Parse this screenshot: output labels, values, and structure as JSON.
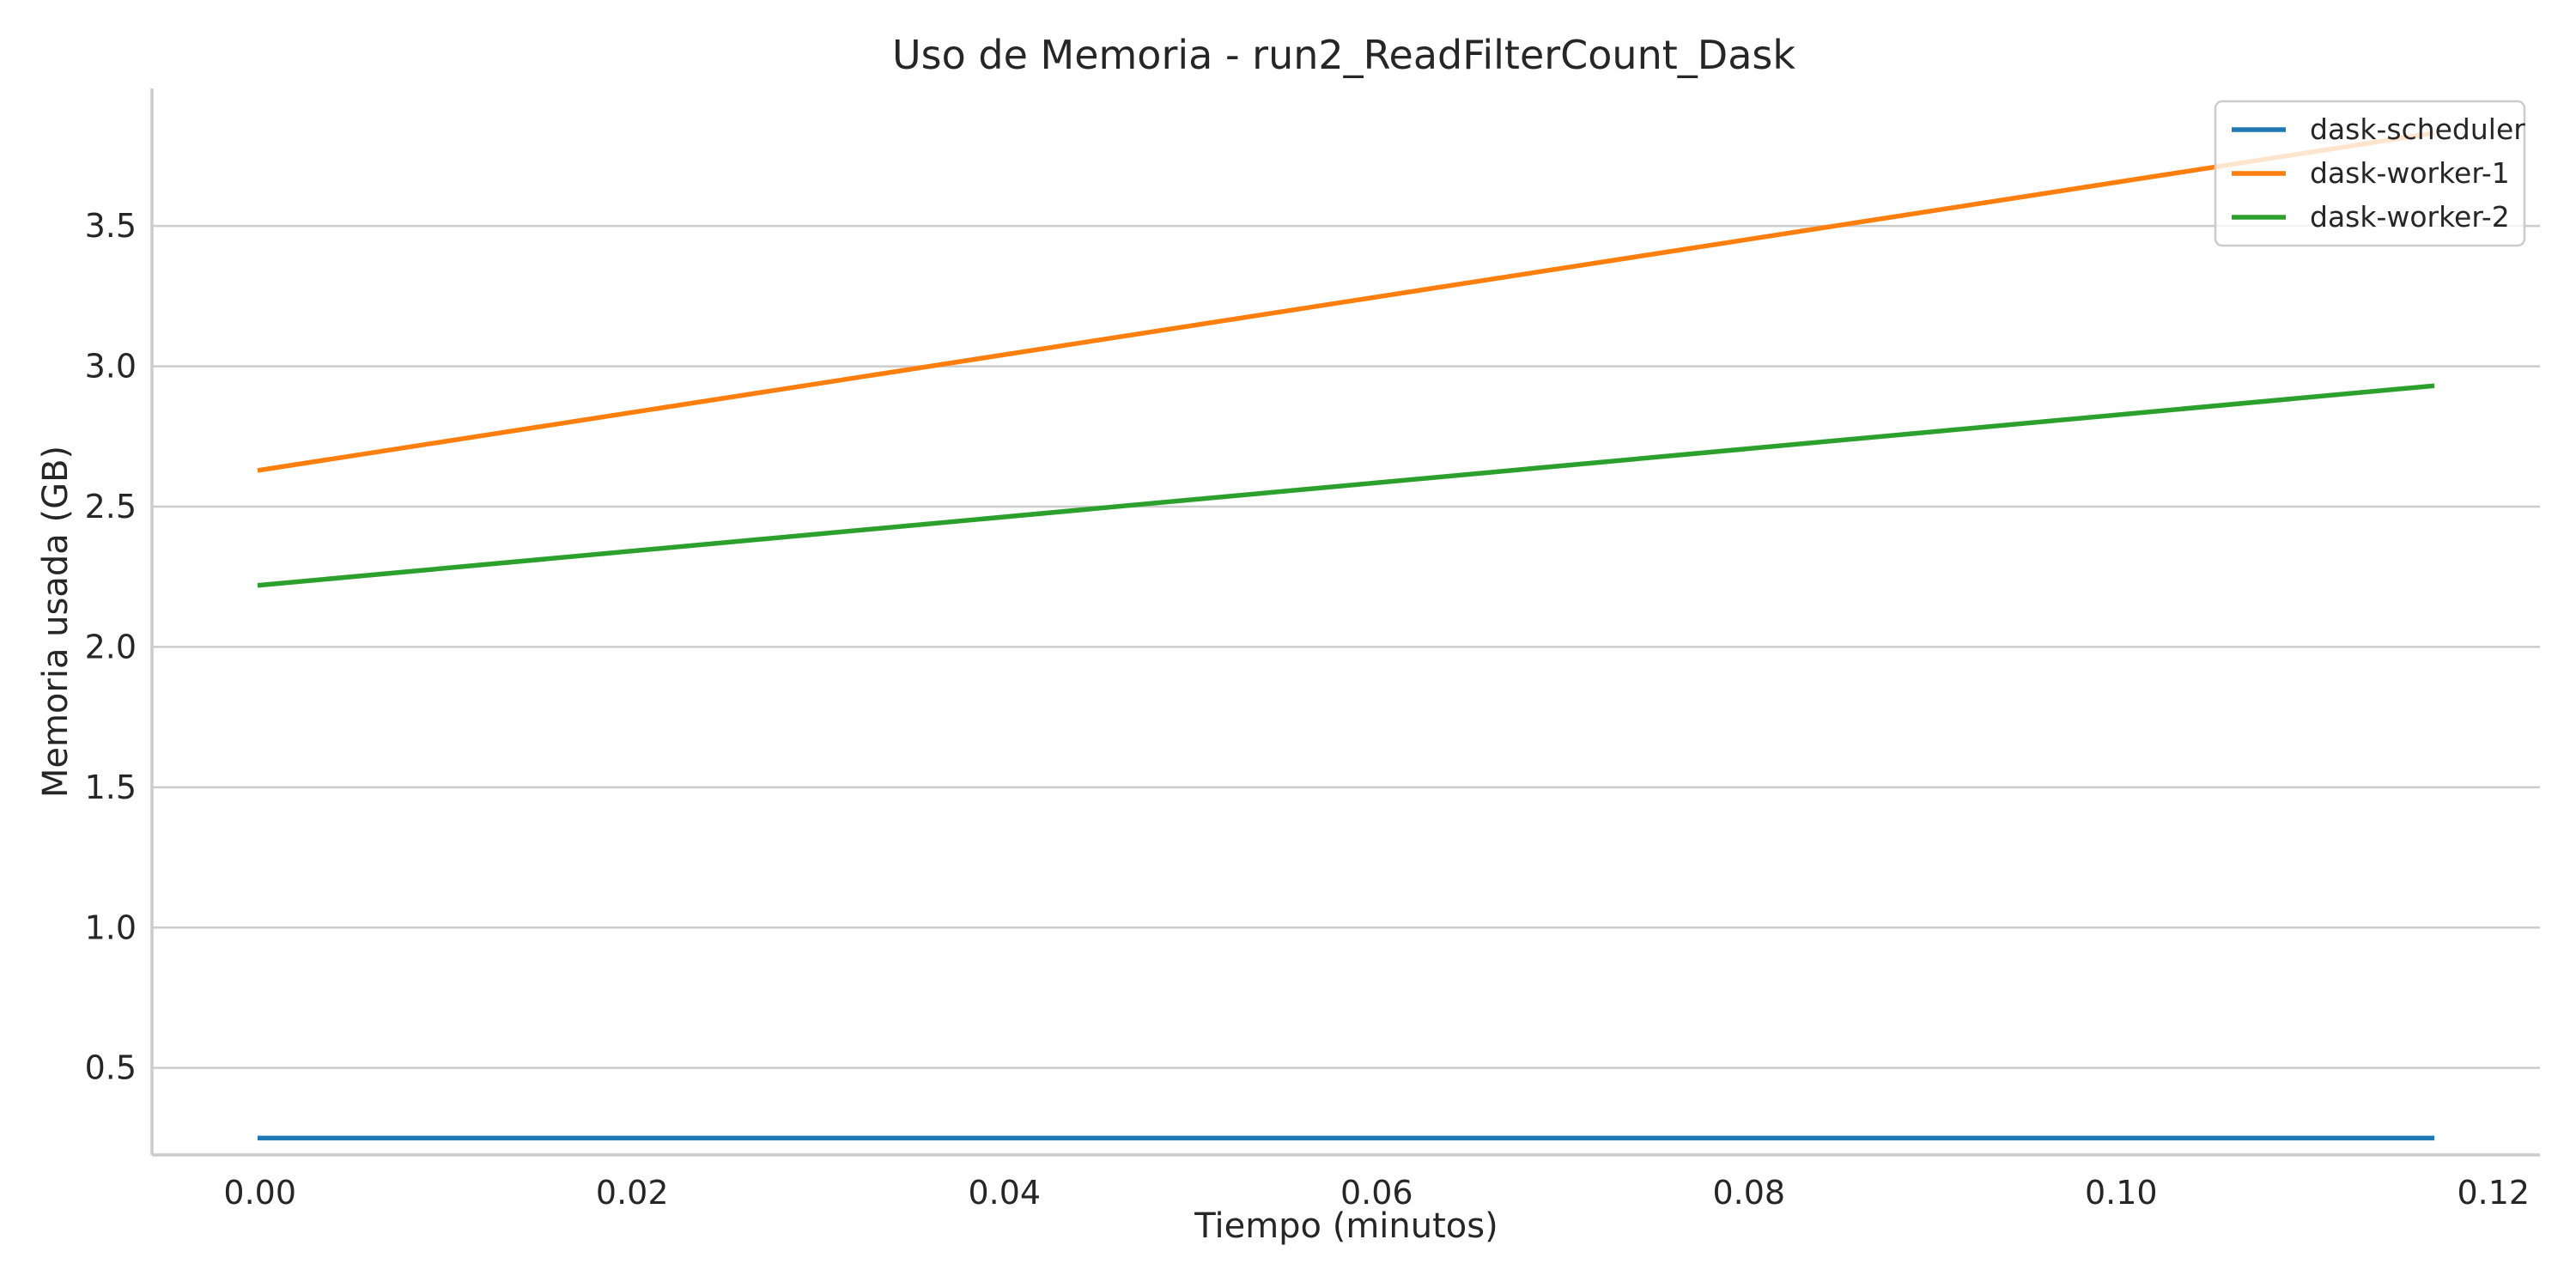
{
  "chart_data": {
    "type": "line",
    "title": "Uso de Memoria - run2_ReadFilterCount_Dask",
    "xlabel": "Tiempo (minutos)",
    "ylabel": "Memoria usada (GB)",
    "xlim": [
      -0.0058,
      0.1225
    ],
    "ylim": [
      0.19,
      3.99
    ],
    "xticks": [
      "0.00",
      "0.02",
      "0.04",
      "0.06",
      "0.08",
      "0.10",
      "0.12"
    ],
    "yticks": [
      "0.5",
      "1.0",
      "1.5",
      "2.0",
      "2.5",
      "3.0",
      "3.5"
    ],
    "grid": "horizontal",
    "legend_position": "top-right",
    "series": [
      {
        "name": "dask-scheduler",
        "color": "#1f77b4",
        "x": [
          0.0,
          0.1167
        ],
        "y": [
          0.25,
          0.25
        ]
      },
      {
        "name": "dask-worker-1",
        "color": "#ff7f0e",
        "x": [
          0.0,
          0.1167
        ],
        "y": [
          2.63,
          3.83
        ]
      },
      {
        "name": "dask-worker-2",
        "color": "#2ca02c",
        "x": [
          0.0,
          0.1167
        ],
        "y": [
          2.22,
          2.93
        ]
      }
    ]
  }
}
